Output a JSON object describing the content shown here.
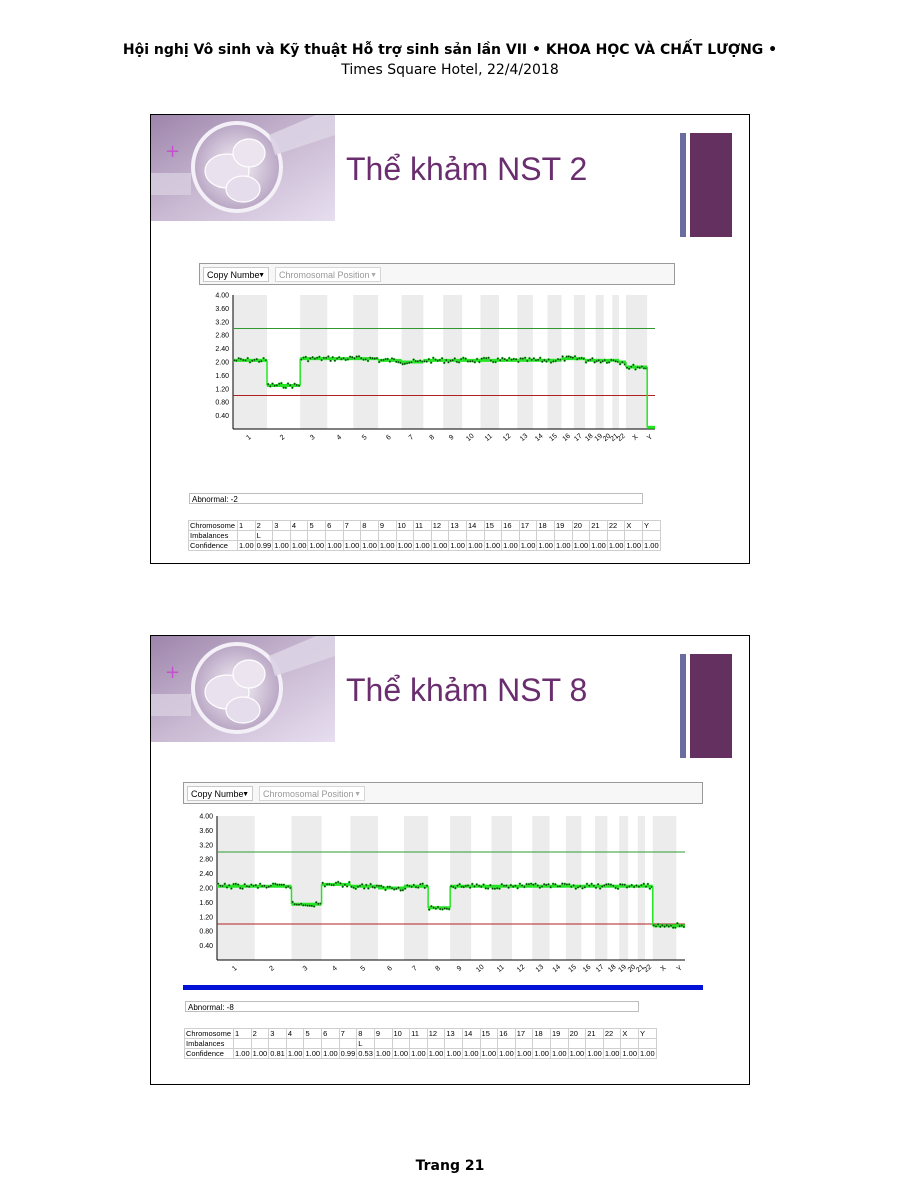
{
  "header": {
    "line1": "Hội nghị Vô sinh và Kỹ thuật Hỗ trợ sinh sản lần VII  •  KHOA HỌC VÀ CHẤT LƯỢNG •",
    "line2": "Times Square Hotel, 22/4/2018"
  },
  "footer": {
    "page": "Trang 21"
  },
  "colors": {
    "title": "#6a2e6f",
    "accent_thin": "#6a6b9f",
    "accent_thick": "#63305f",
    "series": "#22e622",
    "upper_line": "#2e9a2e",
    "lower_line": "#b02020"
  },
  "chromosomes": [
    "1",
    "2",
    "3",
    "4",
    "5",
    "6",
    "7",
    "8",
    "9",
    "10",
    "11",
    "12",
    "13",
    "14",
    "15",
    "16",
    "17",
    "18",
    "19",
    "20",
    "21",
    "22",
    "X",
    "Y"
  ],
  "slides": [
    {
      "title": "Thể khảm NST 2",
      "dropdown_copy": "Copy Numbe",
      "dropdown_position": "Chromosomal Position",
      "abnormal": "Abnormal: -2",
      "row_labels": [
        "Chromosome",
        "Imbalances",
        "Confidence"
      ],
      "imbalances": [
        "",
        "L",
        "",
        "",
        "",
        "",
        "",
        "",
        "",
        "",
        "",
        "",
        "",
        "",
        "",
        "",
        "",
        "",
        "",
        "",
        "",
        "",
        "",
        ""
      ],
      "confidence": [
        "1.00",
        "0.99",
        "1.00",
        "1.00",
        "1.00",
        "1.00",
        "1.00",
        "1.00",
        "1.00",
        "1.00",
        "1.00",
        "1.00",
        "1.00",
        "1.00",
        "1.00",
        "1.00",
        "1.00",
        "1.00",
        "1.00",
        "1.00",
        "1.00",
        "1.00",
        "1.00",
        "1.00"
      ],
      "chart_data": {
        "type": "scatter",
        "xlabel": "",
        "ylabel": "",
        "y_ticks": [
          "4.00",
          "3.60",
          "3.20",
          "2.80",
          "2.40",
          "2.00",
          "1.60",
          "1.20",
          "0.80",
          "0.40"
        ],
        "ylim": [
          0,
          4
        ],
        "upper_threshold": 3.0,
        "lower_threshold": 1.0,
        "grid": "alternating shaded chromosome bands",
        "categories": [
          "1",
          "2",
          "3",
          "4",
          "5",
          "6",
          "7",
          "8",
          "9",
          "10",
          "11",
          "12",
          "13",
          "14",
          "15",
          "16",
          "17",
          "18",
          "19",
          "20",
          "21",
          "22",
          "X",
          "Y"
        ],
        "segment_copy_number": [
          2.05,
          1.3,
          2.1,
          2.1,
          2.1,
          2.05,
          2.0,
          2.05,
          2.05,
          2.05,
          2.05,
          2.05,
          2.05,
          2.05,
          2.05,
          2.1,
          2.1,
          2.05,
          2.05,
          2.05,
          2.05,
          2.0,
          1.85,
          0.05
        ]
      }
    },
    {
      "title": "Thể khảm NST 8",
      "dropdown_copy": "Copy Numbe",
      "dropdown_position": "Chromosomal Position",
      "abnormal": "Abnormal: -8",
      "row_labels": [
        "Chromosome",
        "Imbalances",
        "Confidence"
      ],
      "imbalances": [
        "",
        "",
        "",
        "",
        "",
        "",
        "",
        "L",
        "",
        "",
        "",
        "",
        "",
        "",
        "",
        "",
        "",
        "",
        "",
        "",
        "",
        "",
        "",
        ""
      ],
      "confidence": [
        "1.00",
        "1.00",
        "0.81",
        "1.00",
        "1.00",
        "1.00",
        "0.99",
        "0.53",
        "1.00",
        "1.00",
        "1.00",
        "1.00",
        "1.00",
        "1.00",
        "1.00",
        "1.00",
        "1.00",
        "1.00",
        "1.00",
        "1.00",
        "1.00",
        "1.00",
        "1.00",
        "1.00"
      ],
      "chart_data": {
        "type": "scatter",
        "xlabel": "",
        "ylabel": "",
        "y_ticks": [
          "4.00",
          "3.60",
          "3.20",
          "2.80",
          "2.40",
          "2.00",
          "1.60",
          "1.20",
          "0.80",
          "0.40"
        ],
        "ylim": [
          0,
          4
        ],
        "upper_threshold": 3.0,
        "lower_threshold": 1.0,
        "grid": "alternating shaded chromosome bands",
        "categories": [
          "1",
          "2",
          "3",
          "4",
          "5",
          "6",
          "7",
          "8",
          "9",
          "10",
          "11",
          "12",
          "13",
          "14",
          "15",
          "16",
          "17",
          "18",
          "19",
          "20",
          "21",
          "22",
          "X",
          "Y"
        ],
        "segment_copy_number": [
          2.05,
          2.05,
          1.55,
          2.1,
          2.05,
          2.0,
          2.05,
          1.45,
          2.05,
          2.05,
          2.05,
          2.05,
          2.05,
          2.05,
          2.05,
          2.05,
          2.05,
          2.05,
          2.05,
          2.05,
          2.05,
          2.05,
          0.95,
          0.95
        ]
      }
    }
  ]
}
